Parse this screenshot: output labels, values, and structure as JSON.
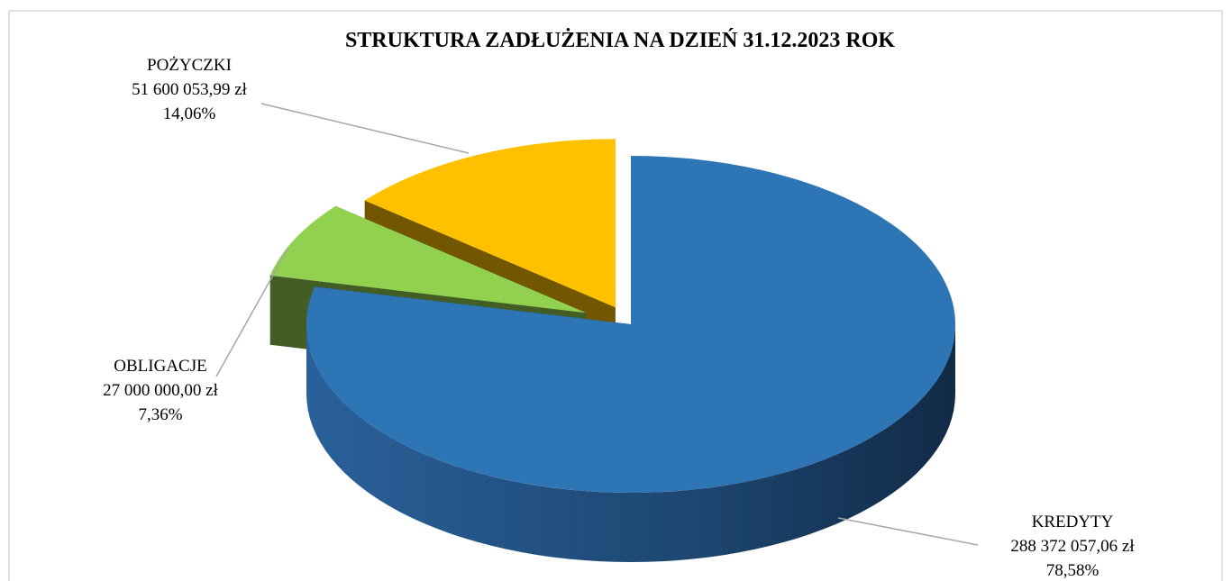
{
  "chart_data": {
    "type": "pie",
    "title": "STRUKTURA ZADŁUŻENIA NA DZIEŃ 31.12.2023 ROK",
    "categories": [
      "KREDYTY",
      "OBLIGACJE",
      "POŻYCZKI"
    ],
    "values": [
      78.58,
      7.36,
      14.06
    ],
    "value_labels": [
      "78,58%",
      "7,36%",
      "14,06%"
    ],
    "amounts": [
      288372057.06,
      27000000.0,
      51600053.99
    ],
    "amount_labels": [
      "288 372 057,06 zł",
      "27 000 000,00 zł",
      "51 600 053,99 zł"
    ],
    "colors": [
      "#2e75b6",
      "#92d050",
      "#ffc000"
    ]
  }
}
